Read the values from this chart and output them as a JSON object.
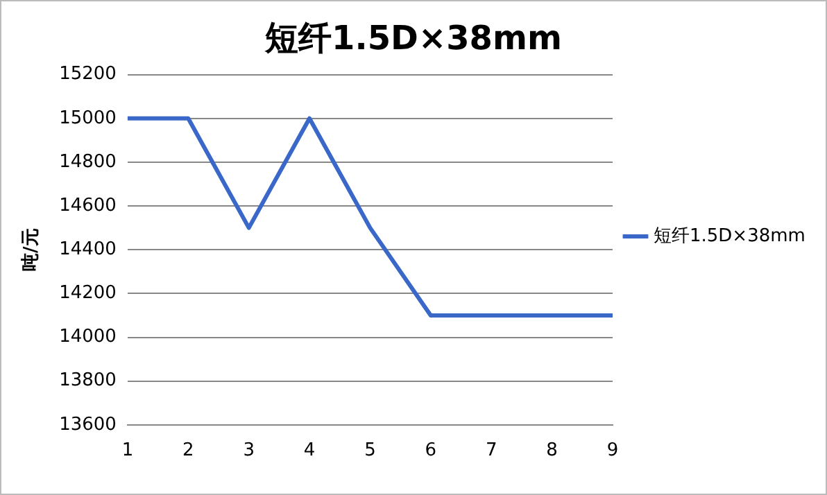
{
  "chart_data": {
    "type": "line",
    "title": "短纤1.5D×38mm",
    "ylabel": "吨/元",
    "categories": [
      "1",
      "2",
      "3",
      "4",
      "5",
      "6",
      "7",
      "8",
      "9"
    ],
    "series": [
      {
        "name": "短纤1.5D×38mm",
        "color": "#3a68c8",
        "values": [
          15000,
          15000,
          14500,
          15000,
          14500,
          14100,
          14100,
          14100,
          14100
        ]
      }
    ],
    "ylim": [
      13600,
      15200
    ],
    "yticks": [
      13600,
      13800,
      14000,
      14200,
      14400,
      14600,
      14800,
      15000,
      15200
    ],
    "grid": "y",
    "legend": "right",
    "marker": "none",
    "line_style": "solid"
  }
}
